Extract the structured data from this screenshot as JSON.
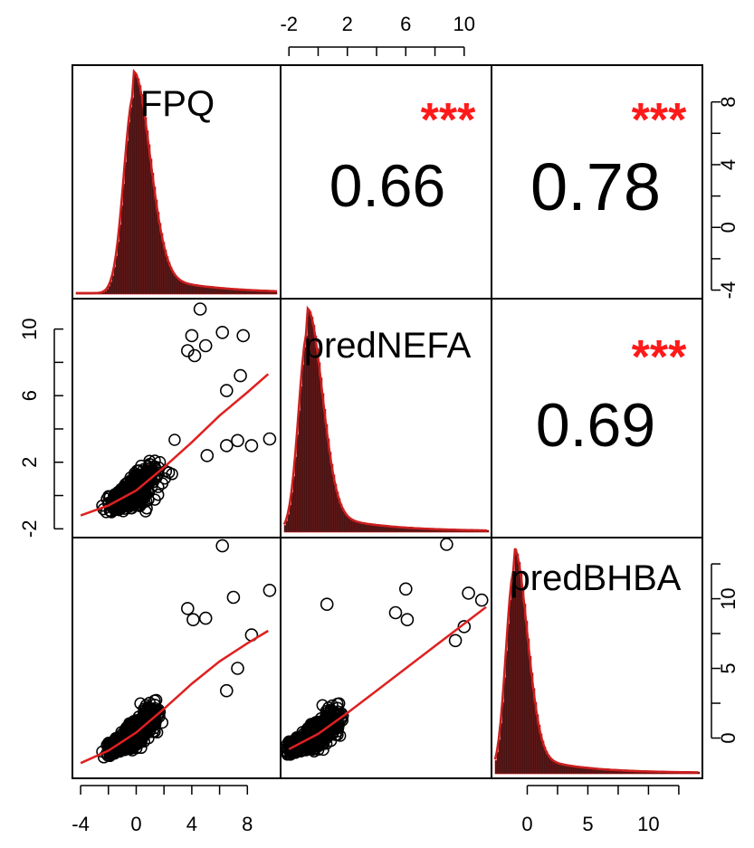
{
  "chart_data": {
    "type": "scatter",
    "variables": [
      "FPQ",
      "predNEFA",
      "predBHBA"
    ],
    "correlations": [
      {
        "row": "FPQ",
        "col": "predNEFA",
        "value": "0.66",
        "stars": "***"
      },
      {
        "row": "FPQ",
        "col": "predBHBA",
        "value": "0.78",
        "stars": "***"
      },
      {
        "row": "predNEFA",
        "col": "predBHBA",
        "value": "0.69",
        "stars": "***"
      }
    ],
    "axes": {
      "top": {
        "variable": "predNEFA",
        "ticks": [
          "-2",
          "2",
          "6",
          "10"
        ]
      },
      "left": {
        "variable": "predNEFA",
        "ticks": [
          "-2",
          "2",
          "6",
          "10"
        ]
      },
      "bottom_left": {
        "variable": "FPQ",
        "ticks": [
          "-4",
          "0",
          "4",
          "8"
        ]
      },
      "bottom_right": {
        "variable": "predBHBA",
        "ticks": [
          "0",
          "5",
          "10"
        ]
      },
      "right_top": {
        "variable": "FPQ",
        "ticks": [
          "-4",
          "0",
          "4",
          "8"
        ]
      },
      "right_bottom": {
        "variable": "predBHBA",
        "ticks": [
          "0",
          "5",
          "10"
        ]
      }
    },
    "ranges": {
      "FPQ": [
        -4.2,
        10
      ],
      "predNEFA": [
        -2.2,
        11.5
      ],
      "predBHBA": [
        -2.5,
        14
      ]
    },
    "scatter": [
      {
        "x": "FPQ",
        "y": "predNEFA",
        "outliers": [
          [
            4.6,
            11.2
          ],
          [
            6.2,
            9.8
          ],
          [
            4.0,
            9.6
          ],
          [
            5.0,
            9.0
          ],
          [
            7.7,
            9.6
          ],
          [
            3.7,
            8.7
          ],
          [
            4.2,
            8.4
          ],
          [
            6.5,
            6.3
          ],
          [
            7.5,
            7.2
          ],
          [
            9.6,
            3.4
          ],
          [
            8.3,
            3.0
          ],
          [
            6.5,
            3.0
          ],
          [
            7.3,
            3.3
          ],
          [
            5.1,
            2.4
          ]
        ],
        "smooth": [
          [
            -4,
            -1.2
          ],
          [
            -2,
            -0.6
          ],
          [
            0,
            0.3
          ],
          [
            2,
            1.7
          ],
          [
            4,
            3.2
          ],
          [
            6,
            4.8
          ],
          [
            8,
            6.2
          ],
          [
            9.5,
            7.3
          ]
        ]
      },
      {
        "x": "FPQ",
        "y": "predBHBA",
        "outliers": [
          [
            6.2,
            13.8
          ],
          [
            9.6,
            10.6
          ],
          [
            7.0,
            10.1
          ],
          [
            3.7,
            9.3
          ],
          [
            5.0,
            8.6
          ],
          [
            4.1,
            8.5
          ],
          [
            8.3,
            7.4
          ],
          [
            7.3,
            5.0
          ],
          [
            6.5,
            3.4
          ]
        ],
        "smooth": [
          [
            -4,
            -1.8
          ],
          [
            -2,
            -0.9
          ],
          [
            0,
            0.4
          ],
          [
            2,
            2.1
          ],
          [
            4,
            3.9
          ],
          [
            6,
            5.5
          ],
          [
            8,
            6.8
          ],
          [
            9.5,
            7.7
          ]
        ]
      },
      {
        "x": "predNEFA",
        "y": "predBHBA",
        "outliers": [
          [
            8.8,
            13.9
          ],
          [
            6.0,
            10.7
          ],
          [
            5.3,
            9.0
          ],
          [
            10.3,
            10.4
          ],
          [
            11.2,
            9.9
          ],
          [
            0.6,
            9.6
          ],
          [
            6.1,
            8.5
          ],
          [
            10.0,
            8.0
          ],
          [
            9.4,
            7.0
          ]
        ],
        "smooth": [
          [
            -2,
            -0.8
          ],
          [
            0,
            0.3
          ],
          [
            2,
            1.8
          ],
          [
            4,
            3.4
          ],
          [
            6,
            5.0
          ],
          [
            8,
            6.6
          ],
          [
            10,
            8.2
          ],
          [
            11.5,
            9.4
          ]
        ]
      }
    ],
    "grid": false,
    "colors": {
      "points": "#000000",
      "smooth": "#e02020",
      "density": "#cc1f1f",
      "stars": "#ff1a1a",
      "text": "#000000"
    }
  }
}
